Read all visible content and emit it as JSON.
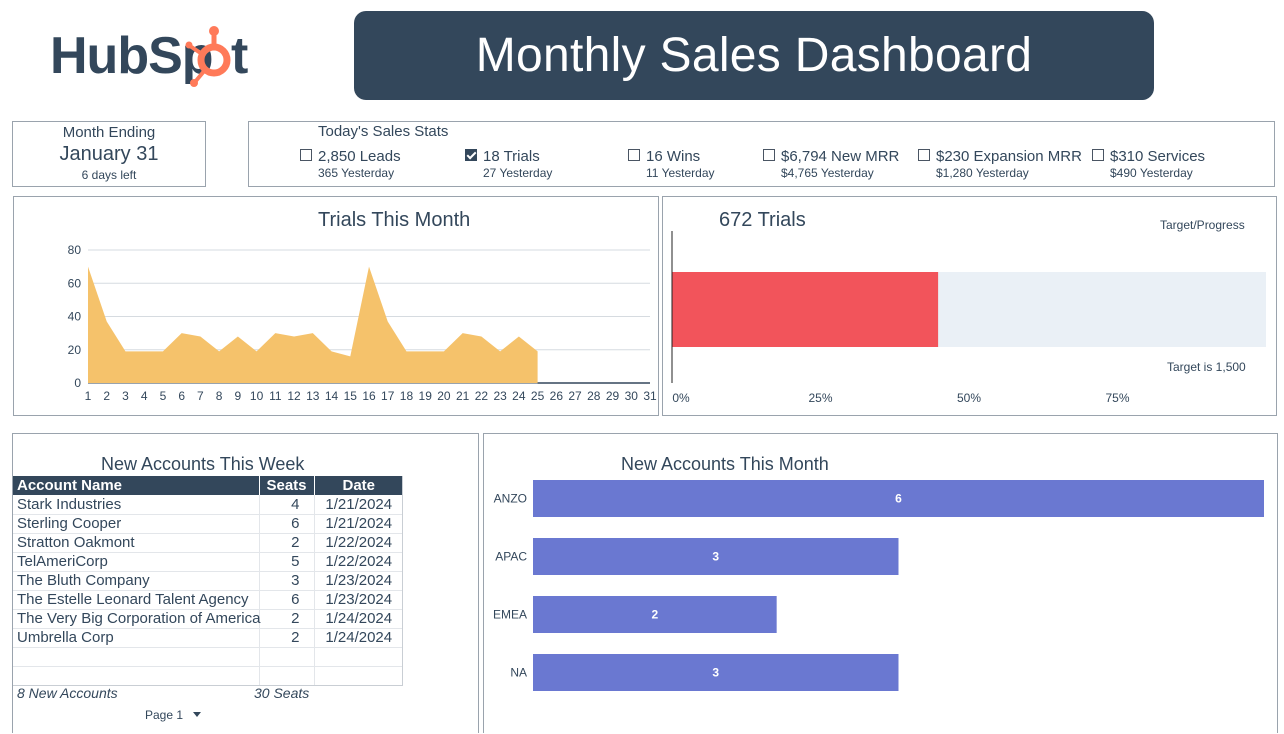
{
  "header": {
    "logo_text": "HubSpot",
    "title": "Monthly Sales Dashboard"
  },
  "month_ending": {
    "label": "Month Ending",
    "date": "January 31",
    "days_left": "6 days left"
  },
  "sales_stats": {
    "title": "Today's Sales Stats",
    "items": [
      {
        "label": "2,850 Leads",
        "sub": "365 Yesterday",
        "checked": false
      },
      {
        "label": "18 Trials",
        "sub": "27 Yesterday",
        "checked": true
      },
      {
        "label": "16 Wins",
        "sub": "11 Yesterday",
        "checked": false
      },
      {
        "label": "$6,794 New MRR",
        "sub": "$4,765 Yesterday",
        "checked": false
      },
      {
        "label": "$230 Expansion MRR",
        "sub": "$1,280 Yesterday",
        "checked": false
      },
      {
        "label": "$310 Services",
        "sub": "$490 Yesterday",
        "checked": false
      }
    ]
  },
  "colors": {
    "banner": "#33475b",
    "area_fill": "#f5c26b",
    "progress_fill": "#f2545b",
    "progress_track": "#eaf0f6",
    "region_bar": "#6a78d1",
    "hubspot_orange": "#ff7a59"
  },
  "chart_data": [
    {
      "type": "area",
      "title": "Trials This Month",
      "x": [
        1,
        2,
        3,
        4,
        5,
        6,
        7,
        8,
        9,
        10,
        11,
        12,
        13,
        14,
        15,
        16,
        17,
        18,
        19,
        20,
        21,
        22,
        23,
        24,
        25,
        26,
        27,
        28,
        29,
        30,
        31
      ],
      "values": [
        70,
        37,
        19,
        19,
        19,
        30,
        28,
        19,
        28,
        19,
        30,
        28,
        30,
        19,
        16,
        70,
        37,
        19,
        19,
        19,
        30,
        28,
        19,
        28,
        19,
        0,
        0,
        0,
        0,
        0,
        0
      ],
      "data_through_day": 25,
      "ylim": [
        0,
        80
      ],
      "yticks": [
        0,
        20,
        40,
        60,
        80
      ],
      "grid": true
    },
    {
      "type": "bar",
      "orientation": "horizontal",
      "title": "672 Trials",
      "legend_label": "Target/Progress",
      "value": 672,
      "target": 1500,
      "target_label": "Target is 1,500",
      "xticks": [
        "0%",
        "25%",
        "50%",
        "75%"
      ],
      "xlim": [
        0,
        1
      ]
    },
    {
      "type": "bar",
      "orientation": "horizontal",
      "title": "New Accounts This Month",
      "categories": [
        "ANZO",
        "APAC",
        "EMEA",
        "NA"
      ],
      "values": [
        6,
        3,
        2,
        3
      ],
      "xlim": [
        0,
        6
      ]
    }
  ],
  "accounts_table": {
    "title": "New Accounts This Week",
    "columns": [
      "Account Name",
      "Seats",
      "Date"
    ],
    "rows": [
      [
        "Stark Industries",
        "4",
        "1/21/2024"
      ],
      [
        "Sterling Cooper",
        "6",
        "1/21/2024"
      ],
      [
        "Stratton Oakmont",
        "2",
        "1/22/2024"
      ],
      [
        "TelAmeriCorp",
        "5",
        "1/22/2024"
      ],
      [
        "The Bluth Company",
        "3",
        "1/23/2024"
      ],
      [
        "The Estelle Leonard Talent Agency",
        "6",
        "1/23/2024"
      ],
      [
        "The Very Big Corporation of America",
        "2",
        "1/24/2024"
      ],
      [
        "Umbrella Corp",
        "2",
        "1/24/2024"
      ]
    ],
    "total_accounts": "8 New Accounts",
    "total_seats": "30 Seats",
    "page_label": "Page 1"
  }
}
